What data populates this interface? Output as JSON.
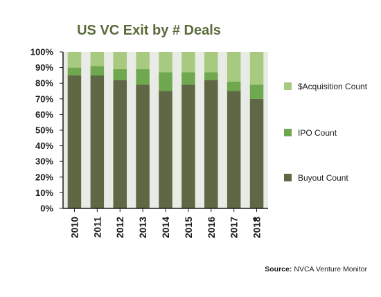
{
  "colors": {
    "buyout": "#5f6844",
    "ipo": "#6fa84e",
    "acquisition": "#a8ca80",
    "title": "#5a6a3a",
    "plot_background": "#e9ebe6"
  },
  "source": {
    "label": "Source:",
    "text": "NVCA Venture Monitor"
  },
  "chart_data": {
    "type": "bar",
    "stacked": true,
    "title": "US VC Exit by # Deals",
    "xlabel": "",
    "ylabel": "",
    "categories": [
      "2010",
      "2011",
      "2012",
      "2013",
      "2014",
      "2015",
      "2016",
      "2017",
      "2018"
    ],
    "category_annotations": [
      {
        "category": "2018",
        "text": "*"
      }
    ],
    "ylim": [
      0,
      100
    ],
    "yticks": [
      0,
      10,
      20,
      30,
      40,
      50,
      60,
      70,
      80,
      90,
      100
    ],
    "ytick_labels": [
      "0%",
      "10%",
      "20%",
      "30%",
      "40%",
      "50%",
      "60%",
      "70%",
      "80%",
      "90%",
      "100%"
    ],
    "series": [
      {
        "name": "Buyout Count",
        "color": "#5f6844",
        "values": [
          85,
          85,
          82,
          79,
          75,
          79,
          82,
          75,
          70
        ]
      },
      {
        "name": "IPO Count",
        "color": "#6fa84e",
        "values": [
          5,
          6,
          7,
          10,
          12,
          8,
          5,
          6,
          9
        ]
      },
      {
        "name": "$Acquisition Count",
        "color": "#a8ca80",
        "values": [
          10,
          9,
          11,
          11,
          13,
          13,
          13,
          19,
          21
        ]
      }
    ],
    "legend_order": [
      "$Acquisition Count",
      "IPO Count",
      "Buyout Count"
    ],
    "legend_position": "right",
    "grid": false
  }
}
